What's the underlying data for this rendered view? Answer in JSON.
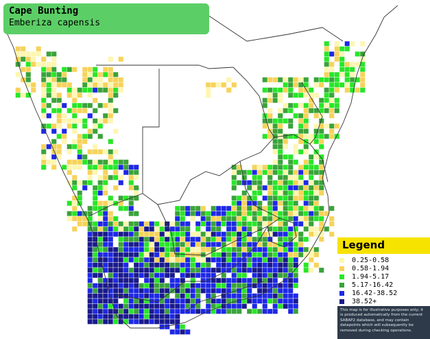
{
  "species": {
    "common_name": "Cape Bunting",
    "scientific_name": "Emberiza capensis"
  },
  "legend": {
    "title": "Legend",
    "items": [
      {
        "label": "0.25-0.58",
        "color": "#fef6b0"
      },
      {
        "label": "0.58-1.94",
        "color": "#f6d35a"
      },
      {
        "label": "1.94-5.17",
        "color": "#28e628"
      },
      {
        "label": "5.17-16.42",
        "color": "#3aa33a"
      },
      {
        "label": "16.42-38.52",
        "color": "#1e28e6"
      },
      {
        "label": "38.52+",
        "color": "#1a1a8c"
      }
    ],
    "disclaimer": "This map is for illustrative purposes only; it is produced automatically from the current SABAP2 database, and may contain datapoints which will subsequently be removed during checking operations."
  },
  "map_colors": {
    "background": "#ffffff",
    "borders": "#333333",
    "grid": "#ffffff"
  }
}
